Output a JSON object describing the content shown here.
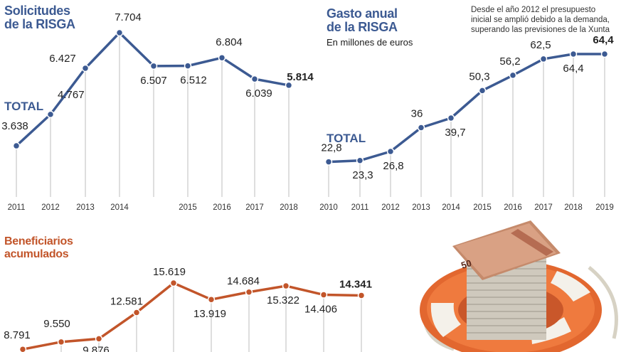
{
  "solicitudes": {
    "title_line1": "Solicitudes",
    "title_line2": "de la RISGA",
    "total_label": "TOTAL"
  },
  "gasto": {
    "title_line1": "Gasto anual",
    "title_line2": "de la RISGA",
    "subtitle": "En millones de euros",
    "note_line1": "Desde el año 2012 el presupuesto",
    "note_line2": "inicial se amplió debido a la demanda,",
    "note_line3": "superando las previsiones de la Xunta",
    "total_label": "TOTAL"
  },
  "beneficiarios": {
    "title_line1": "Beneficiarios",
    "title_line2": "acumulados"
  },
  "colors": {
    "blue": "#3c5a92",
    "orange": "#c2552a",
    "axis": "#bdbdbd"
  },
  "illustration": {
    "name": "lifebuoy-with-euro-banknotes",
    "banknote_value": "50"
  },
  "chart_data": [
    {
      "id": "solicitudes",
      "type": "line",
      "title": "Solicitudes de la RISGA",
      "series": [
        {
          "name": "TOTAL",
          "values": [
            3638,
            4767,
            6427,
            7704,
            6507,
            6512,
            6804,
            6039,
            5814
          ]
        }
      ],
      "categories": [
        "2011",
        "2012",
        "2013",
        "2014",
        "",
        "2015",
        "2016",
        "2017",
        "2018"
      ],
      "labels": [
        "3.638",
        "4.767",
        "6.427",
        "7.704",
        "6.507",
        "6.512",
        "6.804",
        "6.039",
        "5.814"
      ],
      "ylim": [
        3000,
        8000
      ],
      "color": "#3c5a92",
      "last_label_bold": true
    },
    {
      "id": "gasto",
      "type": "line",
      "title": "Gasto anual de la RISGA",
      "unit": "millones de euros",
      "series": [
        {
          "name": "TOTAL",
          "values": [
            22.8,
            23.3,
            26.8,
            36,
            39.7,
            50.3,
            56.2,
            62.5,
            64.4,
            64.4
          ]
        }
      ],
      "categories": [
        "2010",
        "2011",
        "2012",
        "2013",
        "2014",
        "2015",
        "2016",
        "2017",
        "2018",
        "2019"
      ],
      "labels": [
        "22,8",
        "23,3",
        "26,8",
        "36",
        "39,7",
        "50,3",
        "56,2",
        "62,5",
        "64,4",
        "64,4"
      ],
      "ylim": [
        15,
        70
      ],
      "color": "#3c5a92",
      "last_label_bold": true
    },
    {
      "id": "beneficiarios",
      "type": "line",
      "title": "Beneficiarios acumulados",
      "series": [
        {
          "name": "",
          "values": [
            8791,
            9550,
            9876,
            12581,
            15619,
            13919,
            14684,
            15322,
            14406,
            14341
          ]
        }
      ],
      "categories": [],
      "labels": [
        "8.791",
        "9.550",
        "9.876",
        "12.581",
        "15.619",
        "13.919",
        "14.684",
        "15.322",
        "14.406",
        "14.341"
      ],
      "ylim": [
        8000,
        17000
      ],
      "color": "#c2552a",
      "last_label_bold": true
    }
  ]
}
